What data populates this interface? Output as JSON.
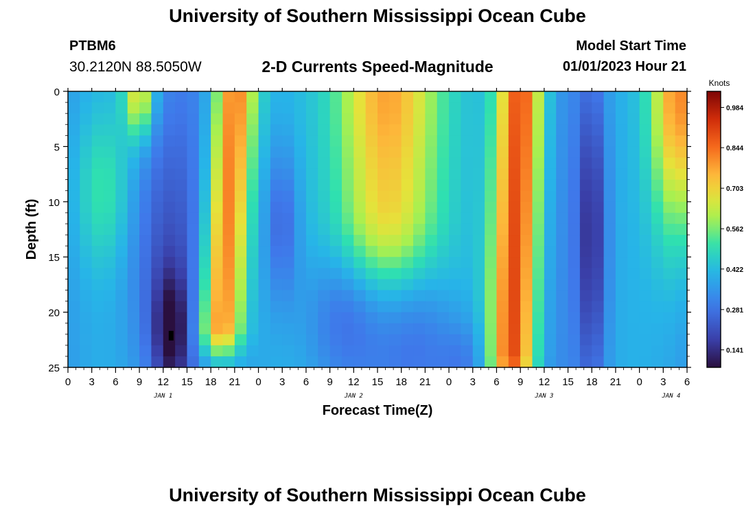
{
  "page": {
    "title": "University of Southern Mississippi Ocean Cube",
    "station": "PTBM6",
    "coordinates": "30.2120N  88.5050W",
    "subtitle": "2-D Currents Speed-Magnitude",
    "model_start_label": "Model Start Time",
    "model_start_value": "01/01/2023 Hour 21",
    "footer_title": "University of Southern Mississippi Ocean Cube"
  },
  "chart_data": {
    "type": "heatmap",
    "title": "2-D Currents Speed-Magnitude",
    "xlabel": "Forecast Time(Z)",
    "ylabel": "Depth (ft)",
    "x_tick_labels": [
      "0",
      "3",
      "6",
      "9",
      "12",
      "15",
      "18",
      "21",
      "0",
      "3",
      "6",
      "9",
      "12",
      "15",
      "18",
      "21",
      "0",
      "3",
      "6",
      "9",
      "12",
      "15",
      "18",
      "21",
      "0",
      "3",
      "6"
    ],
    "x_range_hours": [
      0,
      78
    ],
    "day_labels": [
      {
        "label": "JAN 1",
        "hour": 12
      },
      {
        "label": "JAN 2",
        "hour": 36
      },
      {
        "label": "JAN 3",
        "hour": 60
      },
      {
        "label": "JAN 4",
        "hour": 76
      }
    ],
    "y_ticks": [
      "0",
      "5",
      "10",
      "15",
      "20",
      "25"
    ],
    "ylim": [
      0,
      25
    ],
    "grid": {
      "cols": 52,
      "rows": 25
    },
    "colorbar": {
      "label": "Knots",
      "ticks": [
        "0.984",
        "0.844",
        "0.703",
        "0.562",
        "0.422",
        "0.281",
        "0.141"
      ],
      "range": [
        0.08,
        1.04
      ]
    },
    "scheme": [
      {
        "k": 0.0,
        "hex": "#2a0f3e"
      },
      {
        "k": 0.1,
        "hex": "#3a3fa8"
      },
      {
        "k": 0.22,
        "hex": "#3f78ea"
      },
      {
        "k": 0.34,
        "hex": "#27b4e8"
      },
      {
        "k": 0.44,
        "hex": "#2fe0b0"
      },
      {
        "k": 0.54,
        "hex": "#a8f050"
      },
      {
        "k": 0.62,
        "hex": "#e6e23a"
      },
      {
        "k": 0.7,
        "hex": "#fdb63a"
      },
      {
        "k": 0.8,
        "hex": "#f5681c"
      },
      {
        "k": 0.9,
        "hex": "#cf2c0a"
      },
      {
        "k": 1.0,
        "hex": "#7d0505"
      }
    ],
    "features": [
      {
        "name": "early surface core",
        "hour": 9,
        "depth_top": 0,
        "depth_bottom": 3,
        "peak_knots": 0.75
      },
      {
        "name": "core 1",
        "hour": 21,
        "depth_top": 0,
        "depth_bottom": 21,
        "peak_knots": 1.0
      },
      {
        "name": "core 2",
        "hour": 40,
        "depth_top": 0,
        "depth_bottom": 11,
        "peak_knots": 0.95
      },
      {
        "name": "core 3",
        "hour": 57,
        "depth_top": 0,
        "depth_bottom": 24,
        "peak_knots": 1.0
      },
      {
        "name": "late surface core",
        "hour": 77,
        "depth_top": 0,
        "depth_bottom": 9,
        "peak_knots": 0.85
      },
      {
        "name": "slack minimum",
        "hour": 13,
        "depth_top": 17,
        "depth_bottom": 25,
        "peak_knots": 0.1
      },
      {
        "name": "slack minimum",
        "hour": 66,
        "depth_top": 3,
        "depth_bottom": 23,
        "peak_knots": 0.15
      }
    ],
    "marker": {
      "hour": 13,
      "depth": 22
    }
  }
}
